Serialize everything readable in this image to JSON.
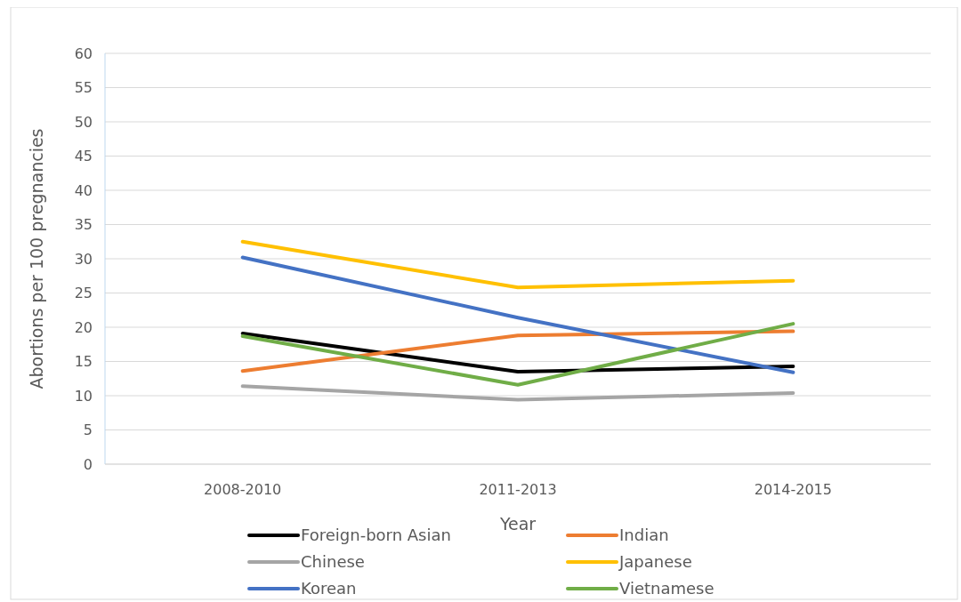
{
  "chart_data": {
    "type": "line",
    "xlabel": "Year",
    "ylabel": "Abortions per 100 pregnancies",
    "categories": [
      "2008-2010",
      "2011-2013",
      "2014-2015"
    ],
    "ylim": [
      0,
      60
    ],
    "yticks": [
      0,
      5,
      10,
      15,
      20,
      25,
      30,
      35,
      40,
      45,
      50,
      55,
      60
    ],
    "grid": "y",
    "legend": "bottom",
    "marker": "none",
    "line_style": "solid",
    "series": [
      {
        "name": "Foreign-born Asian",
        "color": "#000000",
        "values": [
          19.1,
          13.5,
          14.3
        ]
      },
      {
        "name": "Indian",
        "color": "#ed7d31",
        "values": [
          13.6,
          18.8,
          19.4
        ]
      },
      {
        "name": "Chinese",
        "color": "#a5a5a5",
        "values": [
          11.4,
          9.4,
          10.4
        ]
      },
      {
        "name": "Japanese",
        "color": "#ffc000",
        "values": [
          32.5,
          25.8,
          26.8
        ]
      },
      {
        "name": "Korean",
        "color": "#4472c4",
        "values": [
          30.2,
          21.4,
          13.4
        ]
      },
      {
        "name": "Vietnamese",
        "color": "#70ad47",
        "values": [
          18.7,
          11.6,
          20.5
        ]
      }
    ]
  }
}
